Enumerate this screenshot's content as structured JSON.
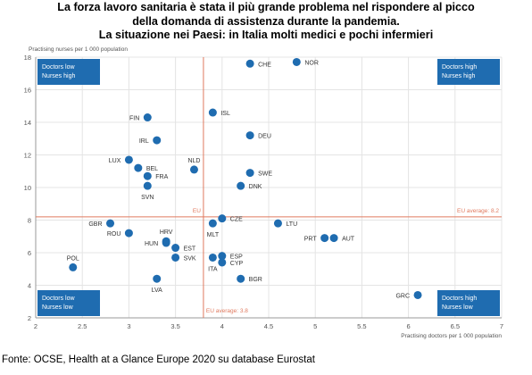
{
  "title_lines": [
    "La forza lavoro sanitaria è stata il più grande problema nel rispondere al picco",
    "della domanda di assistenza durante la pandemia.",
    "La situazione nei Paesi: in Italia molti medici e pochi infermieri"
  ],
  "source": "Fonte: OCSE, Health at a Glance Europe 2020 su database Eurostat",
  "colors": {
    "point": "#1f6cb0",
    "quadrant_box": "#1f6cb0",
    "reference_line": "#e07a5f",
    "grid": "#e4e4e4",
    "axis_text": "#555555",
    "label_text": "#333333"
  },
  "chart_data": {
    "type": "scatter",
    "xlabel": "Practising doctors per 1 000 population",
    "ylabel": "Practising nurses per 1 000 population",
    "xlim": [
      2,
      7
    ],
    "ylim": [
      2,
      18
    ],
    "xticks": [
      2,
      2.5,
      3,
      3.5,
      4,
      4.5,
      5,
      5.5,
      6,
      6.5,
      7
    ],
    "yticks": [
      2,
      4,
      6,
      8,
      10,
      12,
      14,
      16,
      18
    ],
    "grid": true,
    "reference_lines": {
      "x": {
        "value": 3.8,
        "label": "EU average: 3.8",
        "axis_label": "EU"
      },
      "y": {
        "value": 8.2,
        "label": "EU average: 8.2"
      }
    },
    "quadrant_labels": [
      {
        "position": "top-left",
        "line1": "Doctors low",
        "line2": "Nurses high"
      },
      {
        "position": "top-right",
        "line1": "Doctors high",
        "line2": "Nurses high"
      },
      {
        "position": "bottom-left",
        "line1": "Doctors low",
        "line2": "Nurses low"
      },
      {
        "position": "bottom-right",
        "line1": "Doctors high",
        "line2": "Nurses low"
      }
    ],
    "points": [
      {
        "label": "CHE",
        "x": 4.3,
        "y": 17.6,
        "side": "right"
      },
      {
        "label": "NOR",
        "x": 4.8,
        "y": 17.7,
        "side": "right"
      },
      {
        "label": "ISL",
        "x": 3.9,
        "y": 14.6,
        "side": "right"
      },
      {
        "label": "FIN",
        "x": 3.2,
        "y": 14.3,
        "side": "left"
      },
      {
        "label": "DEU",
        "x": 4.3,
        "y": 13.2,
        "side": "right"
      },
      {
        "label": "IRL",
        "x": 3.3,
        "y": 12.9,
        "side": "left"
      },
      {
        "label": "LUX",
        "x": 3.0,
        "y": 11.7,
        "side": "left"
      },
      {
        "label": "NLD",
        "x": 3.7,
        "y": 11.1,
        "side": "above"
      },
      {
        "label": "BEL",
        "x": 3.1,
        "y": 11.2,
        "side": "right"
      },
      {
        "label": "FRA",
        "x": 3.2,
        "y": 10.7,
        "side": "right"
      },
      {
        "label": "SWE",
        "x": 4.3,
        "y": 10.9,
        "side": "right"
      },
      {
        "label": "DNK",
        "x": 4.2,
        "y": 10.1,
        "side": "right"
      },
      {
        "label": "SVN",
        "x": 3.2,
        "y": 10.1,
        "side": "below"
      },
      {
        "label": "CZE",
        "x": 4.0,
        "y": 8.1,
        "side": "right"
      },
      {
        "label": "MLT",
        "x": 3.9,
        "y": 7.8,
        "side": "below"
      },
      {
        "label": "LTU",
        "x": 4.6,
        "y": 7.8,
        "side": "right"
      },
      {
        "label": "GBR",
        "x": 2.8,
        "y": 7.8,
        "side": "left"
      },
      {
        "label": "ROU",
        "x": 3.0,
        "y": 7.2,
        "side": "left"
      },
      {
        "label": "PRT",
        "x": 5.1,
        "y": 6.9,
        "side": "left"
      },
      {
        "label": "AUT",
        "x": 5.2,
        "y": 6.9,
        "side": "right"
      },
      {
        "label": "HRV",
        "x": 3.4,
        "y": 6.7,
        "side": "above"
      },
      {
        "label": "HUN",
        "x": 3.4,
        "y": 6.6,
        "side": "left"
      },
      {
        "label": "EST",
        "x": 3.5,
        "y": 6.3,
        "side": "right"
      },
      {
        "label": "ESP",
        "x": 4.0,
        "y": 5.8,
        "side": "right"
      },
      {
        "label": "SVK",
        "x": 3.5,
        "y": 5.7,
        "side": "right"
      },
      {
        "label": "ITA",
        "x": 3.9,
        "y": 5.7,
        "side": "below"
      },
      {
        "label": "CYP",
        "x": 4.0,
        "y": 5.4,
        "side": "right"
      },
      {
        "label": "POL",
        "x": 2.4,
        "y": 5.1,
        "side": "above"
      },
      {
        "label": "BGR",
        "x": 4.2,
        "y": 4.4,
        "side": "right"
      },
      {
        "label": "LVA",
        "x": 3.3,
        "y": 4.4,
        "side": "below"
      },
      {
        "label": "GRC",
        "x": 6.1,
        "y": 3.4,
        "side": "left"
      }
    ]
  }
}
